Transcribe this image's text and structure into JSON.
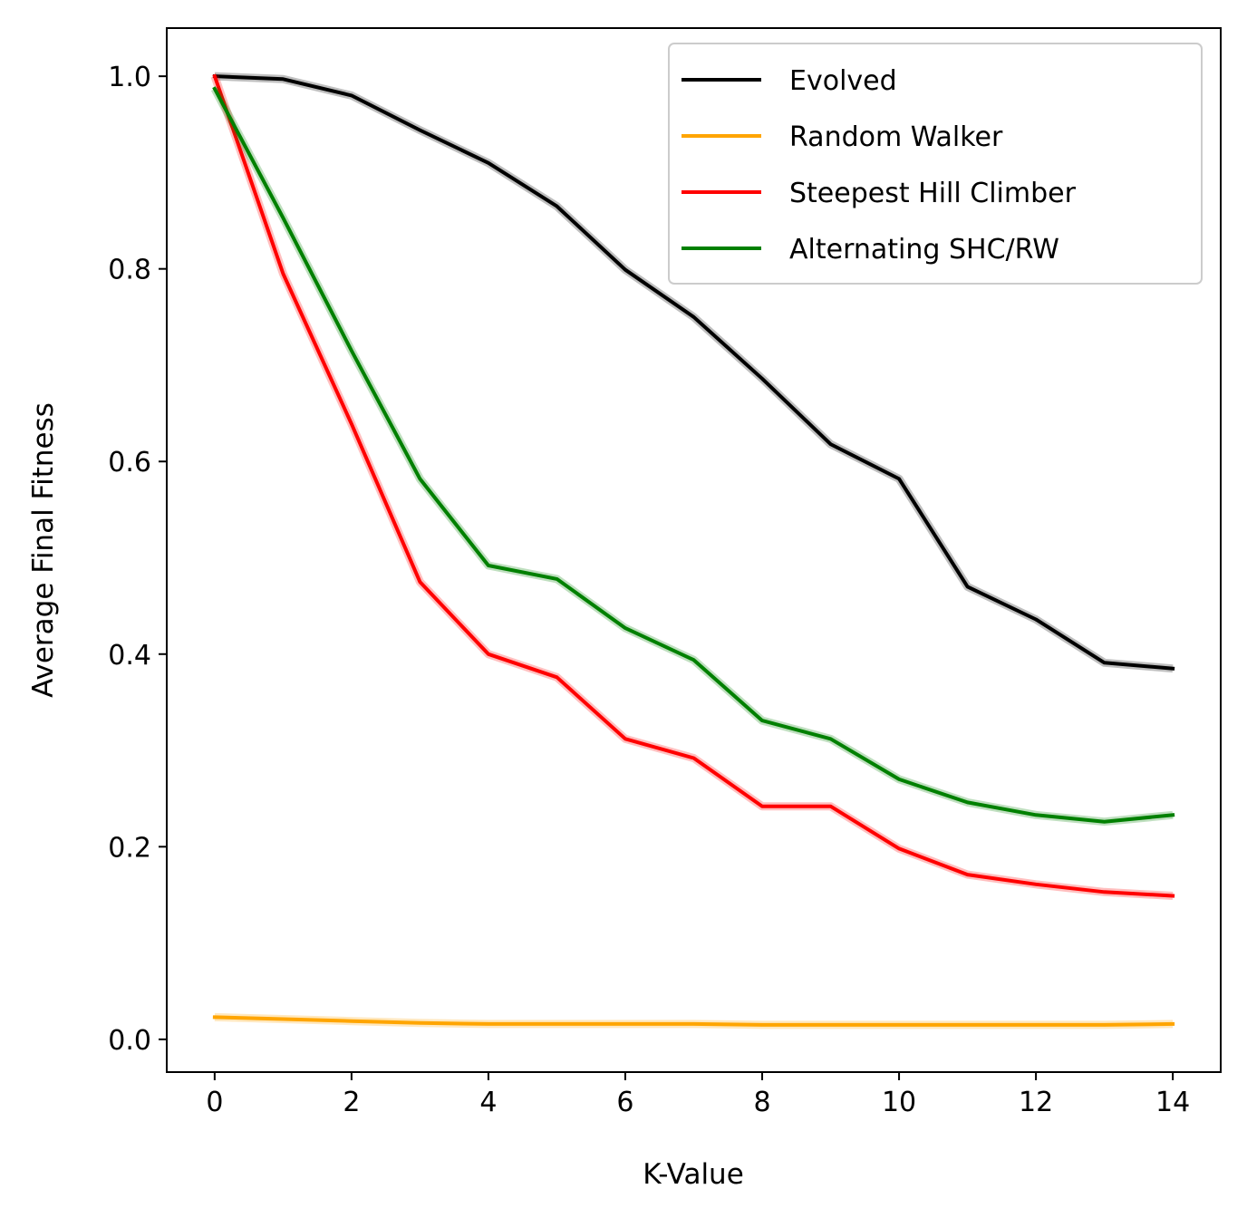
{
  "chart_data": {
    "type": "line",
    "title": "",
    "xlabel": "K-Value",
    "ylabel": "Average Final Fitness",
    "xlim": [
      -0.7,
      14.7
    ],
    "ylim": [
      -0.034,
      1.05
    ],
    "xticks": [
      0,
      2,
      4,
      6,
      8,
      10,
      12,
      14
    ],
    "xtick_labels": [
      "0",
      "2",
      "4",
      "6",
      "8",
      "10",
      "12",
      "14"
    ],
    "yticks": [
      0.0,
      0.2,
      0.4,
      0.6,
      0.8,
      1.0
    ],
    "ytick_labels": [
      "0.0",
      "0.2",
      "0.4",
      "0.6",
      "0.8",
      "1.0"
    ],
    "grid": false,
    "legend_position": "top-right",
    "x": [
      0,
      1,
      2,
      3,
      4,
      5,
      6,
      7,
      8,
      9,
      10,
      11,
      12,
      13,
      14
    ],
    "series": [
      {
        "name": "Evolved",
        "color": "#000000",
        "values": [
          1.0,
          0.997,
          0.98,
          0.944,
          0.91,
          0.865,
          0.799,
          0.75,
          0.686,
          0.618,
          0.582,
          0.47,
          0.436,
          0.391,
          0.385
        ]
      },
      {
        "name": "Random Walker",
        "color": "#ffa500",
        "values": [
          0.023,
          0.021,
          0.019,
          0.017,
          0.016,
          0.016,
          0.016,
          0.016,
          0.015,
          0.015,
          0.015,
          0.015,
          0.015,
          0.015,
          0.016
        ]
      },
      {
        "name": "Steepest Hill Climber",
        "color": "#ff0000",
        "values": [
          1.0,
          0.795,
          0.639,
          0.475,
          0.4,
          0.376,
          0.312,
          0.292,
          0.242,
          0.242,
          0.198,
          0.171,
          0.161,
          0.153,
          0.149
        ]
      },
      {
        "name": "Alternating SHC/RW",
        "color": "#008000",
        "values": [
          0.987,
          0.853,
          0.715,
          0.582,
          0.492,
          0.478,
          0.427,
          0.394,
          0.331,
          0.312,
          0.27,
          0.246,
          0.233,
          0.226,
          0.233
        ]
      }
    ]
  }
}
